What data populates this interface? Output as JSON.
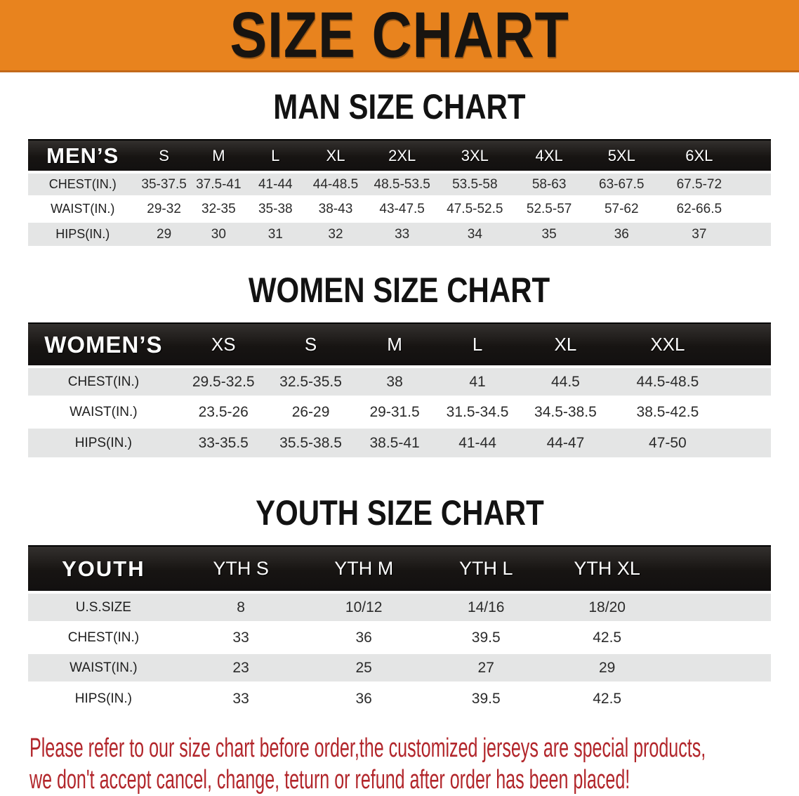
{
  "banner": {
    "title": "SIZE CHART",
    "bg_color": "#e8831e",
    "text_color": "#181410"
  },
  "sections": {
    "men": {
      "heading": "MAN SIZE CHART",
      "table": {
        "label": "MEN’S",
        "columns": [
          "S",
          "M",
          "L",
          "XL",
          "2XL",
          "3XL",
          "4XL",
          "5XL",
          "6XL"
        ],
        "rows": [
          {
            "label": "CHEST(IN.)",
            "values": [
              "35-37.5",
              "37.5-41",
              "41-44",
              "44-48.5",
              "48.5-53.5",
              "53.5-58",
              "58-63",
              "63-67.5",
              "67.5-72"
            ]
          },
          {
            "label": "WAIST(IN.)",
            "values": [
              "29-32",
              "32-35",
              "35-38",
              "38-43",
              "43-47.5",
              "47.5-52.5",
              "52.5-57",
              "57-62",
              "62-66.5"
            ]
          },
          {
            "label": "HIPS(IN.)",
            "values": [
              "29",
              "30",
              "31",
              "32",
              "33",
              "34",
              "35",
              "36",
              "37"
            ]
          }
        ]
      }
    },
    "women": {
      "heading": "WOMEN SIZE CHART",
      "table": {
        "label": "WOMEN’S",
        "columns": [
          "XS",
          "S",
          "M",
          "L",
          "XL",
          "XXL"
        ],
        "rows": [
          {
            "label": "CHEST(IN.)",
            "values": [
              "29.5-32.5",
              "32.5-35.5",
              "38",
              "41",
              "44.5",
              "44.5-48.5"
            ]
          },
          {
            "label": "WAIST(IN.)",
            "values": [
              "23.5-26",
              "26-29",
              "29-31.5",
              "31.5-34.5",
              "34.5-38.5",
              "38.5-42.5"
            ]
          },
          {
            "label": "HIPS(IN.)",
            "values": [
              "33-35.5",
              "35.5-38.5",
              "38.5-41",
              "41-44",
              "44-47",
              "47-50"
            ]
          }
        ]
      }
    },
    "youth": {
      "heading": "YOUTH SIZE CHART",
      "table": {
        "label": "YOUTH",
        "columns": [
          "YTH S",
          "YTH M",
          "YTH L",
          "YTH XL"
        ],
        "rows": [
          {
            "label": "U.S.SIZE",
            "values": [
              "8",
              "10/12",
              "14/16",
              "18/20"
            ]
          },
          {
            "label": "CHEST(IN.)",
            "values": [
              "33",
              "36",
              "39.5",
              "42.5"
            ]
          },
          {
            "label": "WAIST(IN.)",
            "values": [
              "23",
              "25",
              "27",
              "29"
            ]
          },
          {
            "label": "HIPS(IN.)",
            "values": [
              "33",
              "36",
              "39.5",
              "42.5"
            ]
          }
        ]
      }
    }
  },
  "footer": {
    "line1": "Please refer to our size chart before order,the customized jerseys are special products,",
    "line2": "we don't accept cancel, change, teturn or refund after order has been placed!",
    "text_color": "#b2262b"
  }
}
